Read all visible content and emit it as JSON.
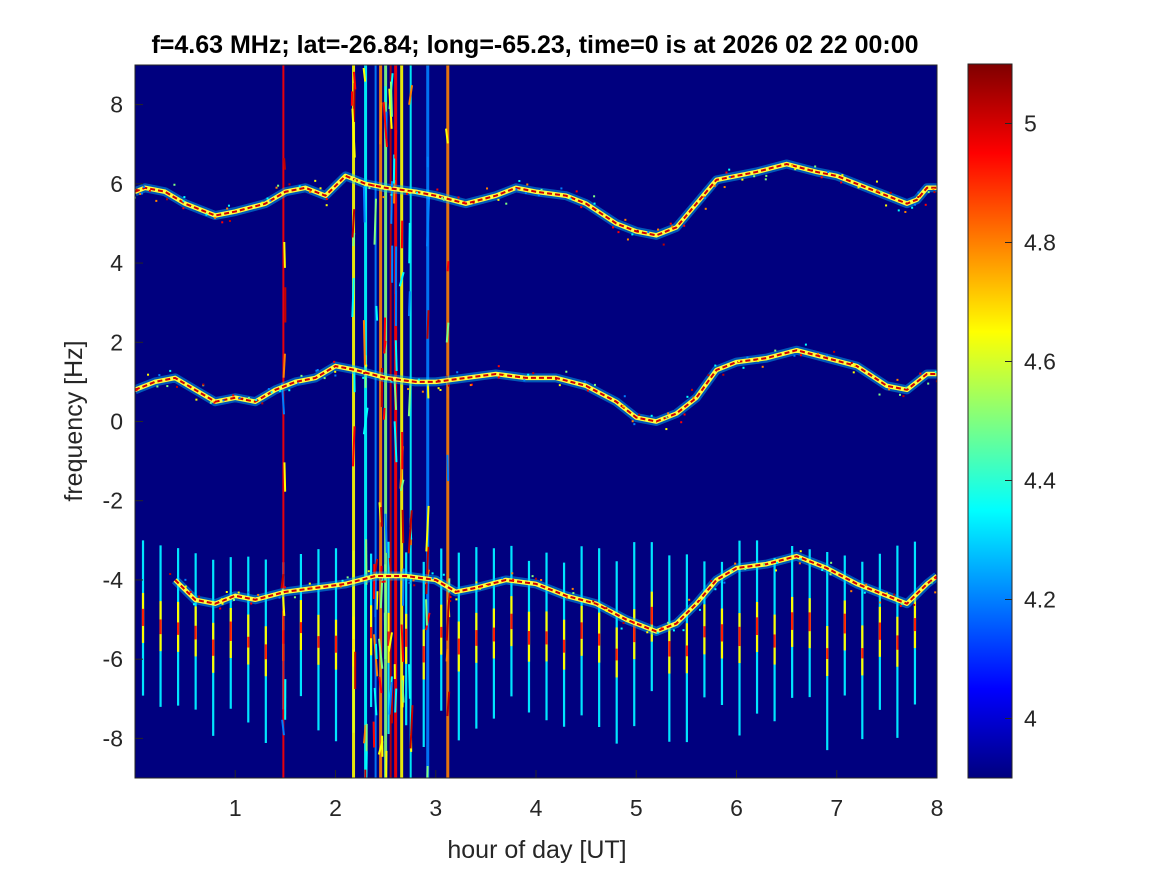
{
  "chart_data": {
    "type": "heatmap",
    "title": "f=4.63 MHz;  lat=-26.84; long=-65.23, time=0 is at 2026 02 22 00:00",
    "xlabel": "hour of day [UT]",
    "ylabel": "frequency [Hz]",
    "xlim": [
      0,
      8
    ],
    "ylim": [
      -9,
      9
    ],
    "x_ticks": [
      1,
      2,
      3,
      4,
      5,
      6,
      7,
      8
    ],
    "y_ticks": [
      -8,
      -6,
      -4,
      -2,
      0,
      2,
      4,
      6,
      8
    ],
    "colormap": "jet",
    "background_color": "#00007f",
    "colorbar": {
      "range": [
        3.9,
        5.1
      ],
      "ticks": [
        4,
        4.2,
        4.4,
        4.6,
        4.8,
        5
      ],
      "tick_labels": [
        "4",
        "4.2",
        "4.4",
        "4.6",
        "4.8",
        "5"
      ]
    },
    "traces": [
      {
        "name": "upper",
        "points": [
          [
            0.0,
            5.8
          ],
          [
            0.1,
            5.9
          ],
          [
            0.3,
            5.8
          ],
          [
            0.5,
            5.5
          ],
          [
            0.8,
            5.2
          ],
          [
            1.0,
            5.3
          ],
          [
            1.3,
            5.5
          ],
          [
            1.5,
            5.8
          ],
          [
            1.7,
            5.9
          ],
          [
            1.9,
            5.7
          ],
          [
            2.1,
            6.2
          ],
          [
            2.3,
            6.0
          ],
          [
            2.5,
            5.9
          ],
          [
            2.8,
            5.8
          ],
          [
            3.0,
            5.7
          ],
          [
            3.3,
            5.5
          ],
          [
            3.6,
            5.7
          ],
          [
            3.8,
            5.9
          ],
          [
            4.0,
            5.8
          ],
          [
            4.3,
            5.7
          ],
          [
            4.5,
            5.5
          ],
          [
            4.8,
            5.0
          ],
          [
            5.0,
            4.8
          ],
          [
            5.2,
            4.7
          ],
          [
            5.4,
            4.9
          ],
          [
            5.6,
            5.5
          ],
          [
            5.8,
            6.1
          ],
          [
            6.0,
            6.2
          ],
          [
            6.2,
            6.3
          ],
          [
            6.5,
            6.5
          ],
          [
            6.8,
            6.3
          ],
          [
            7.0,
            6.2
          ],
          [
            7.3,
            5.9
          ],
          [
            7.5,
            5.7
          ],
          [
            7.7,
            5.5
          ],
          [
            7.8,
            5.6
          ],
          [
            7.9,
            5.9
          ],
          [
            8.0,
            5.9
          ]
        ]
      },
      {
        "name": "middle",
        "points": [
          [
            0.0,
            0.8
          ],
          [
            0.2,
            1.0
          ],
          [
            0.4,
            1.1
          ],
          [
            0.6,
            0.8
          ],
          [
            0.8,
            0.5
          ],
          [
            1.0,
            0.6
          ],
          [
            1.2,
            0.5
          ],
          [
            1.4,
            0.8
          ],
          [
            1.6,
            1.0
          ],
          [
            1.8,
            1.1
          ],
          [
            2.0,
            1.4
          ],
          [
            2.2,
            1.3
          ],
          [
            2.5,
            1.1
          ],
          [
            2.8,
            1.0
          ],
          [
            3.0,
            1.0
          ],
          [
            3.3,
            1.1
          ],
          [
            3.6,
            1.2
          ],
          [
            3.9,
            1.1
          ],
          [
            4.2,
            1.1
          ],
          [
            4.5,
            0.9
          ],
          [
            4.8,
            0.5
          ],
          [
            5.0,
            0.1
          ],
          [
            5.2,
            0.0
          ],
          [
            5.4,
            0.2
          ],
          [
            5.6,
            0.6
          ],
          [
            5.8,
            1.3
          ],
          [
            6.0,
            1.5
          ],
          [
            6.3,
            1.6
          ],
          [
            6.6,
            1.8
          ],
          [
            6.9,
            1.6
          ],
          [
            7.2,
            1.4
          ],
          [
            7.5,
            0.9
          ],
          [
            7.7,
            0.8
          ],
          [
            7.9,
            1.2
          ],
          [
            8.0,
            1.2
          ]
        ]
      },
      {
        "name": "lower",
        "points": [
          [
            0.4,
            -4.0
          ],
          [
            0.6,
            -4.5
          ],
          [
            0.8,
            -4.6
          ],
          [
            1.0,
            -4.4
          ],
          [
            1.2,
            -4.5
          ],
          [
            1.5,
            -4.3
          ],
          [
            1.8,
            -4.2
          ],
          [
            2.1,
            -4.1
          ],
          [
            2.4,
            -3.9
          ],
          [
            2.7,
            -3.9
          ],
          [
            3.0,
            -4.0
          ],
          [
            3.2,
            -4.3
          ],
          [
            3.4,
            -4.2
          ],
          [
            3.7,
            -4.0
          ],
          [
            4.0,
            -4.1
          ],
          [
            4.3,
            -4.4
          ],
          [
            4.6,
            -4.6
          ],
          [
            4.9,
            -5.0
          ],
          [
            5.2,
            -5.3
          ],
          [
            5.4,
            -5.1
          ],
          [
            5.6,
            -4.6
          ],
          [
            5.8,
            -4.0
          ],
          [
            6.0,
            -3.7
          ],
          [
            6.3,
            -3.6
          ],
          [
            6.6,
            -3.4
          ],
          [
            6.9,
            -3.7
          ],
          [
            7.2,
            -4.1
          ],
          [
            7.5,
            -4.4
          ],
          [
            7.7,
            -4.6
          ],
          [
            7.9,
            -4.1
          ],
          [
            8.0,
            -3.9
          ]
        ]
      }
    ],
    "vertical_bursts": [
      1.48,
      2.18,
      2.3,
      2.4,
      2.45,
      2.5,
      2.55,
      2.6,
      2.66,
      2.75,
      2.92,
      3.12
    ],
    "comb_lines": {
      "x_start": 0.08,
      "x_end": 7.9,
      "spacing_hours": 0.175,
      "y_range": [
        -8.3,
        -3.0
      ]
    }
  }
}
